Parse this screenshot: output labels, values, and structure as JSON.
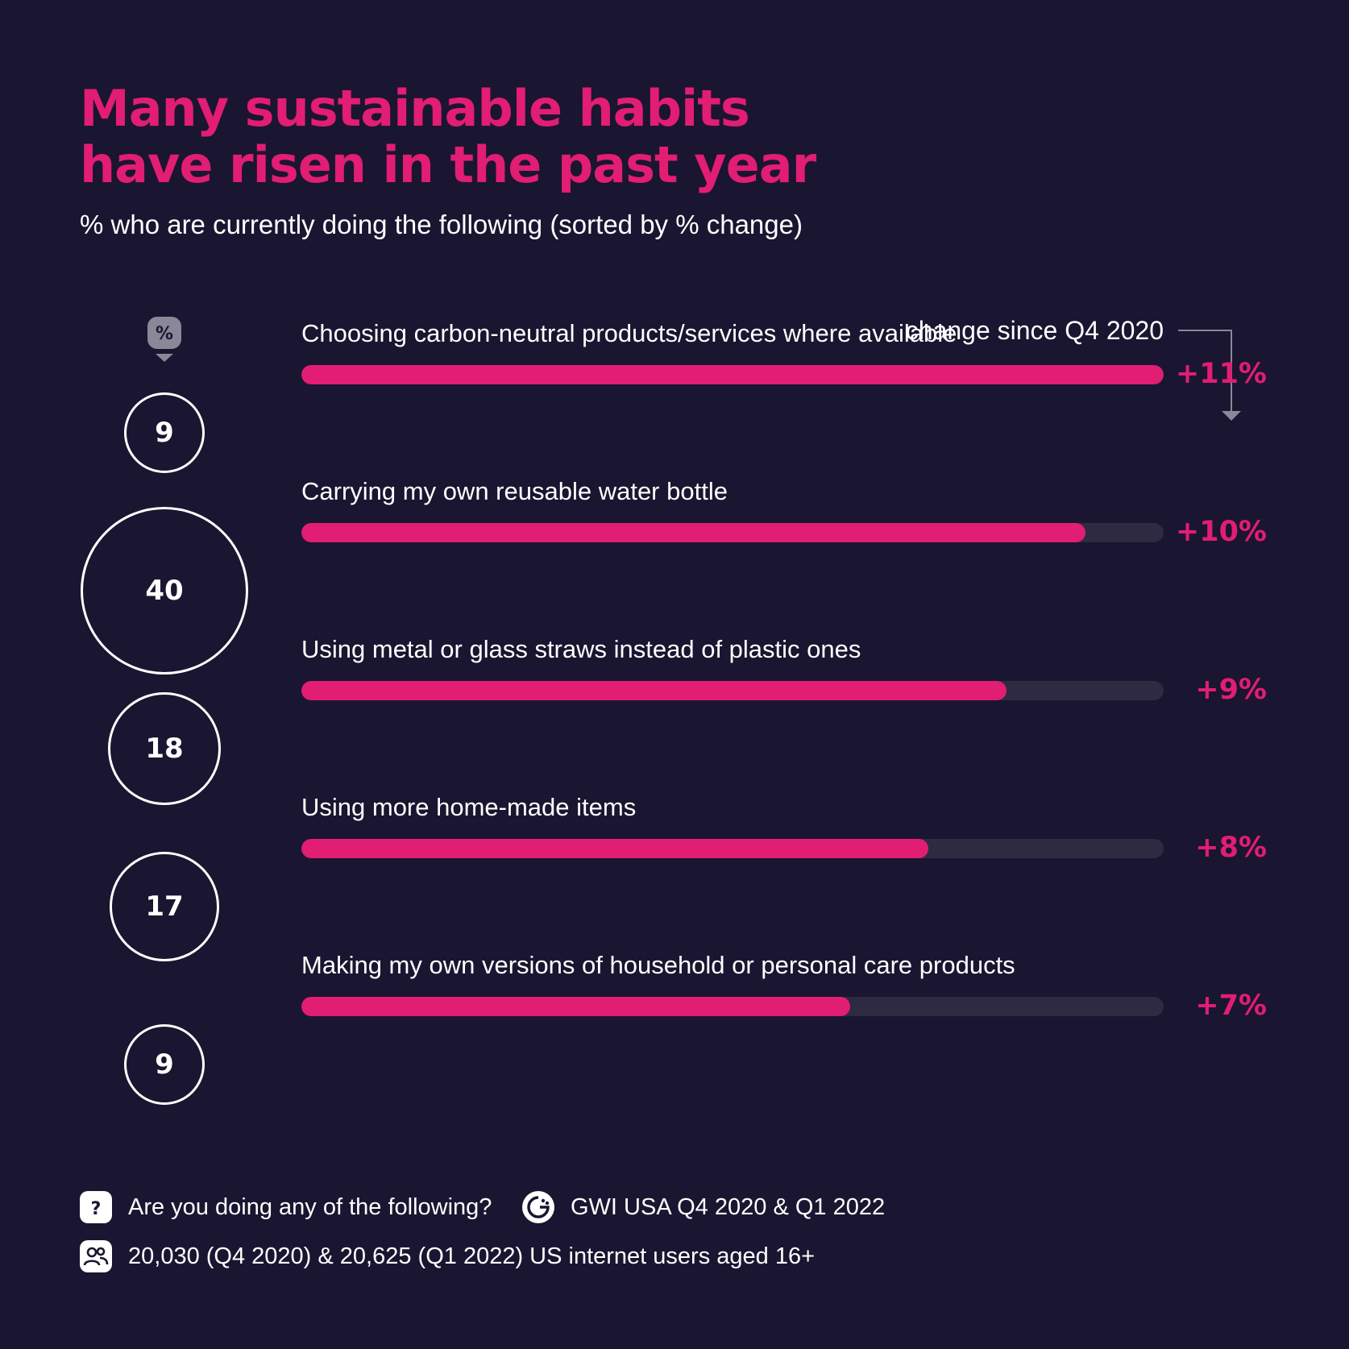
{
  "title_line1": "Many sustainable habits",
  "title_line2": "have risen in the past year",
  "subtitle": "% who are currently doing the following (sorted by % change)",
  "pct_marker": "%",
  "change_header": "change since Q4 2020",
  "colors": {
    "accent": "#e11d74",
    "background": "#1a1530",
    "track": "#2d2a41"
  },
  "chart_data": {
    "type": "bar",
    "title": "Many sustainable habits have risen in the past year",
    "subtitle": "% who are currently doing the following (sorted by % change)",
    "categories": [
      "Choosing carbon-neutral products/services where available",
      "Carrying my own reusable water bottle",
      "Using metal or glass straws instead of plastic ones",
      "Using more home-made items",
      "Making my own versions of household or personal care products"
    ],
    "values": [
      9,
      40,
      18,
      17,
      9
    ],
    "change_values": [
      11,
      10,
      9,
      8,
      7
    ],
    "change_labels": [
      "+11%",
      "+10%",
      "+9%",
      "+8%",
      "+7%"
    ],
    "change_max": 11
  },
  "footer": {
    "question": "Are you doing any of the following?",
    "source": "GWI USA Q4 2020 & Q1 2022",
    "base": "20,030 (Q4 2020) & 20,625 (Q1 2022) US internet users aged 16+"
  },
  "icons": {
    "question": "question-icon",
    "source": "gwi-logo-icon",
    "base": "people-icon"
  }
}
